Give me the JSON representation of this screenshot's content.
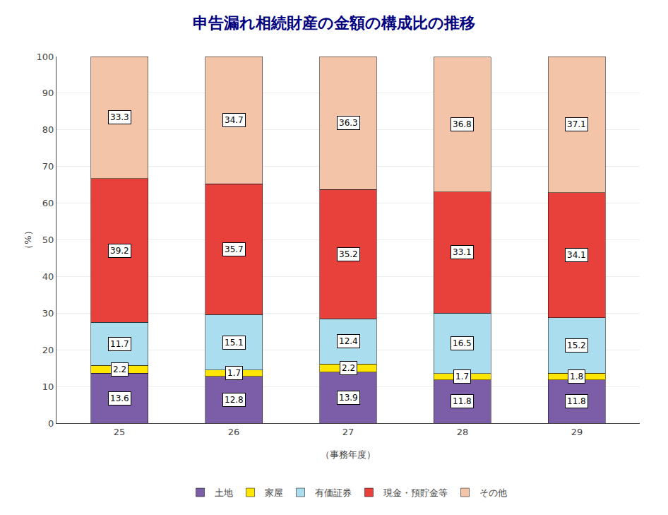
{
  "chart_data": {
    "type": "bar",
    "stacked": true,
    "title": "申告漏れ相続財産の金額の構成比の推移",
    "xlabel": "（事務年度）",
    "ylabel": "（%）",
    "categories": [
      "25",
      "26",
      "27",
      "28",
      "29"
    ],
    "series": [
      {
        "name": "土地",
        "color": "#7B5EA7",
        "values": [
          13.6,
          12.8,
          13.9,
          11.8,
          11.8
        ]
      },
      {
        "name": "家屋",
        "color": "#FFE600",
        "values": [
          2.2,
          1.7,
          2.2,
          1.7,
          1.8
        ]
      },
      {
        "name": "有価証券",
        "color": "#AADDEE",
        "values": [
          11.7,
          15.1,
          12.4,
          16.5,
          15.2
        ]
      },
      {
        "name": "現金・預貯金等",
        "color": "#E8403A",
        "values": [
          39.2,
          35.7,
          35.2,
          33.1,
          34.1
        ]
      },
      {
        "name": "その他",
        "color": "#F4C4A8",
        "values": [
          33.3,
          34.7,
          36.3,
          36.8,
          37.1
        ]
      }
    ],
    "ylim": [
      0,
      100
    ],
    "yticks": [
      0,
      10,
      20,
      30,
      40,
      50,
      60,
      70,
      80,
      90,
      100
    ],
    "grid": true,
    "data_labels": true,
    "legend": "bottom"
  }
}
